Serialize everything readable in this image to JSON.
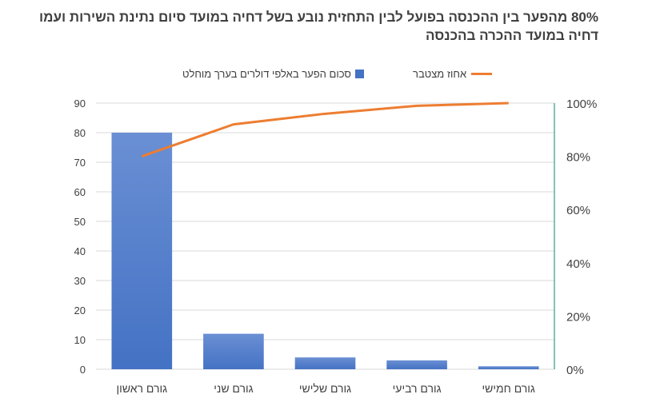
{
  "title": "80% מהפער בין ההכנסה בפועל לבין התחזית נובע בשל דחיה במועד סיום נתינת השירות ועמו דחיה במועד ההכרה בהכנסה",
  "colors": {
    "bar": "#4472c4",
    "line": "#ed7d31",
    "secondary_axis": "#2f9e86",
    "grid": "#d9d9d9"
  },
  "chart_data": {
    "type": "bar",
    "categories": [
      "גורם ראשון",
      "גורם שני",
      "גורם שלישי",
      "גורם רביעי",
      "גורם חמישי"
    ],
    "series": [
      {
        "name": "סכום הפער באלפי דולרים בערך מוחלט",
        "type": "bar",
        "axis": "left",
        "values": [
          80,
          12,
          4,
          3,
          1
        ]
      },
      {
        "name": "אחוז מצטבר",
        "type": "line",
        "axis": "right",
        "values": [
          80,
          92,
          96,
          99,
          100
        ]
      }
    ],
    "ylim": [
      0,
      90
    ],
    "yticks": [
      "0",
      "10",
      "20",
      "30",
      "40",
      "50",
      "60",
      "70",
      "80",
      "90"
    ],
    "y2lim": [
      0,
      100
    ],
    "y2ticks": [
      "0%",
      "20%",
      "40%",
      "60%",
      "80%",
      "100%"
    ],
    "grid": true,
    "legend_position": "top"
  }
}
